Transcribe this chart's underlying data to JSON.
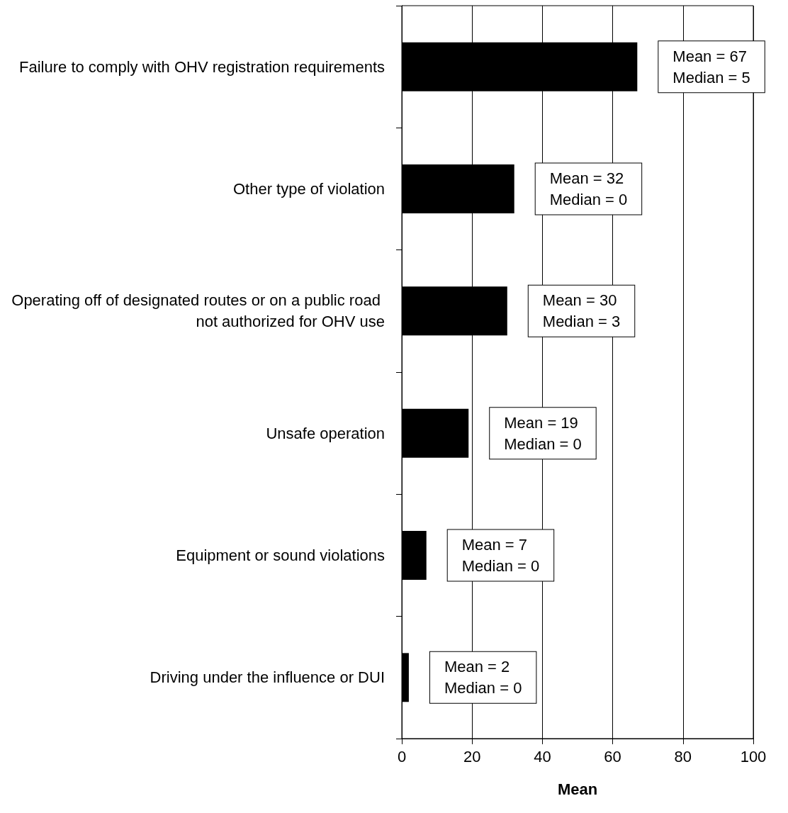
{
  "chart_data": {
    "type": "bar",
    "orientation": "horizontal",
    "xlabel": "Mean",
    "categories": [
      "Failure to comply with OHV registration requirements",
      "Other type of violation",
      "Operating off of designated routes or on a public road not authorized for OHV use",
      "Unsafe operation",
      "Equipment or sound violations",
      "Driving under the influence or DUI"
    ],
    "values": [
      67,
      32,
      30,
      19,
      7,
      2
    ],
    "value_labels": [
      "Mean = 67\nMedian = 5",
      "Mean = 32\nMedian = 0",
      "Mean = 30\nMedian = 3",
      "Mean = 19\nMedian = 0",
      "Mean = 7\nMedian = 0",
      "Mean = 2\nMedian = 0"
    ],
    "color": "#000000",
    "xlim": [
      0,
      100
    ],
    "xticks": [
      0,
      20,
      40,
      60,
      80,
      100
    ],
    "grid": "x"
  }
}
